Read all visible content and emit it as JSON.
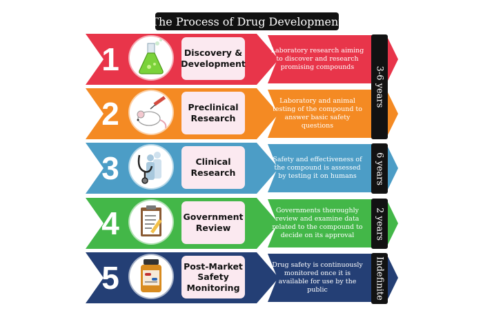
{
  "title": "The Process of Drug Development",
  "steps": [
    {
      "number": "1",
      "label_lines": [
        "Discovery &",
        "Development"
      ],
      "desc_lines": [
        "Laboratory research aiming",
        "to discover and research",
        "promising compounds"
      ],
      "color": "#e8354a",
      "icon": "flask-icon"
    },
    {
      "number": "2",
      "label_lines": [
        "Preclinical",
        "Research"
      ],
      "desc_lines": [
        "Laboratory and animal",
        "testing of the compound to",
        "answer basic safety",
        "questions"
      ],
      "color": "#f48a23",
      "icon": "lab-mouse-icon"
    },
    {
      "number": "3",
      "label_lines": [
        "Clinical",
        "Research"
      ],
      "desc_lines": [
        "Safety and effectiveness of",
        "the compound is assessed",
        "by testing it on humans"
      ],
      "color": "#4c9dc6",
      "icon": "stethoscope-icon"
    },
    {
      "number": "4",
      "label_lines": [
        "Government",
        "Review"
      ],
      "desc_lines": [
        "Governments thoroughly",
        "review and examine data",
        "related to the compound to",
        "decide on its approval"
      ],
      "color": "#43b748",
      "icon": "clipboard-icon"
    },
    {
      "number": "5",
      "label_lines": [
        "Post-Market",
        "Safety",
        "Monitoring"
      ],
      "desc_lines": [
        "Drug safety is continuously",
        "monitored once it is",
        "available for use by the",
        "public"
      ],
      "color": "#243f75",
      "icon": "pill-bottle-icon"
    }
  ],
  "durations": [
    {
      "label": "3-6 years"
    },
    {
      "label": "6 years"
    },
    {
      "label": "2 years"
    },
    {
      "label": "Indefinite"
    }
  ]
}
